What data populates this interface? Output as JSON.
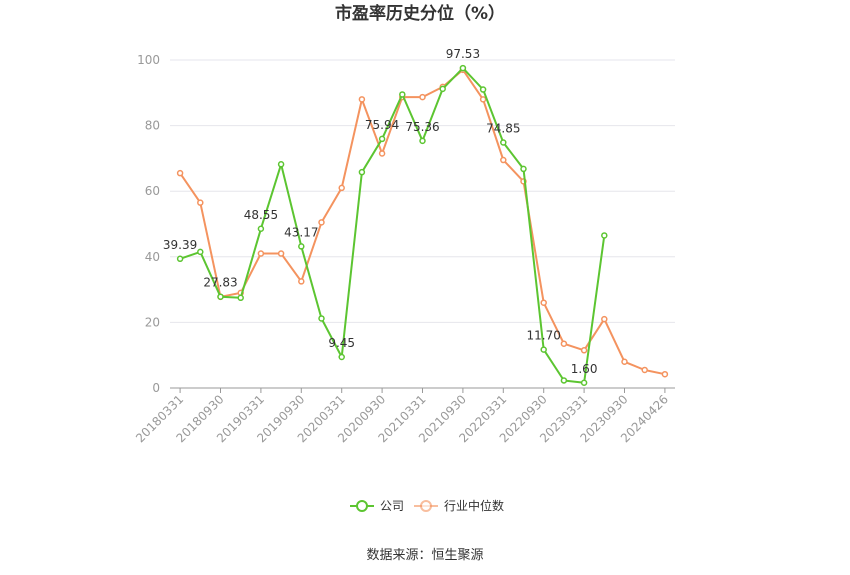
{
  "chart_data": {
    "type": "line",
    "title": "市盈率历史分位（%）",
    "source": "数据来源：恒生聚源",
    "ylim": [
      0,
      100
    ],
    "yticks": [
      0,
      20,
      40,
      60,
      80,
      100
    ],
    "x_tick_labels": [
      "20180331",
      "20180930",
      "20190331",
      "20190930",
      "20200331",
      "20200930",
      "20210331",
      "20210930",
      "20220331",
      "20220930",
      "20230331",
      "20230930",
      "20240426"
    ],
    "categories": [
      "20180331",
      "20180630",
      "20180930",
      "20181231",
      "20190331",
      "20190630",
      "20190930",
      "20191231",
      "20200331",
      "20200630",
      "20200930",
      "20201231",
      "20210331",
      "20210630",
      "20210930",
      "20211231",
      "20220331",
      "20220630",
      "20220930",
      "20221231",
      "20230331",
      "20230630",
      "20230930",
      "20231231",
      "20240426"
    ],
    "series": [
      {
        "name": "公司",
        "color": "#5cc531",
        "values": [
          39.39,
          41.5,
          27.83,
          27.5,
          48.55,
          68.2,
          43.17,
          21.2,
          9.45,
          65.8,
          75.94,
          89.5,
          75.36,
          91.2,
          97.53,
          91.0,
          74.85,
          66.8,
          11.7,
          2.3,
          1.6,
          46.5,
          null,
          null,
          null
        ],
        "labels": [
          "39.39",
          null,
          "27.83",
          null,
          "48.55",
          null,
          "43.17",
          null,
          "9.45",
          null,
          "75.94",
          null,
          "75.36",
          null,
          "97.53",
          null,
          "74.85",
          null,
          "11.70",
          null,
          "1.60",
          null,
          null,
          null,
          null
        ]
      },
      {
        "name": "行业中位数",
        "color": "#f4935f",
        "values": [
          65.5,
          56.5,
          27.8,
          29.0,
          41.0,
          41.0,
          32.5,
          50.5,
          61.0,
          88.0,
          71.5,
          88.7,
          88.7,
          91.8,
          97.0,
          88.0,
          69.5,
          63.0,
          26.0,
          13.5,
          11.5,
          21.0,
          8.0,
          5.5,
          4.2
        ]
      }
    ],
    "legend_position": "bottom",
    "grid": true
  }
}
